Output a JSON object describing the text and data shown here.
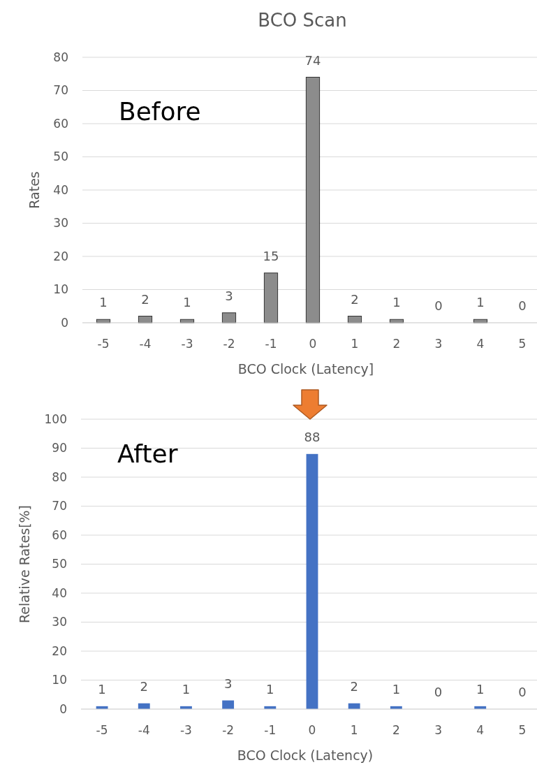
{
  "chart_data": [
    {
      "type": "bar",
      "title": "BCO Scan",
      "xlabel": "BCO Clock (Latency]",
      "ylabel": "Rates",
      "categories": [
        "-5",
        "-4",
        "-3",
        "-2",
        "-1",
        "0",
        "1",
        "2",
        "3",
        "4",
        "5"
      ],
      "values": [
        1,
        2,
        1,
        3,
        15,
        74,
        2,
        1,
        0,
        1,
        0
      ],
      "color": "#8c8c8c",
      "ylim": [
        0,
        80
      ],
      "yticks": [
        0,
        10,
        20,
        30,
        40,
        50,
        60,
        70,
        80
      ],
      "grid": "y",
      "data_labels": true,
      "annotations": [
        "Before"
      ]
    },
    {
      "type": "bar",
      "xlabel": "BCO Clock (Latency)",
      "ylabel": "Relative Rates[%]",
      "categories": [
        "-5",
        "-4",
        "-3",
        "-2",
        "-1",
        "0",
        "1",
        "2",
        "3",
        "4",
        "5"
      ],
      "values": [
        1,
        2,
        1,
        3,
        1,
        88,
        2,
        1,
        0,
        1,
        0
      ],
      "color": "#4472c4",
      "ylim": [
        0,
        100
      ],
      "yticks": [
        0,
        10,
        20,
        30,
        40,
        50,
        60,
        70,
        80,
        90,
        100
      ],
      "grid": "y",
      "data_labels": true,
      "annotations": [
        "After"
      ]
    }
  ]
}
